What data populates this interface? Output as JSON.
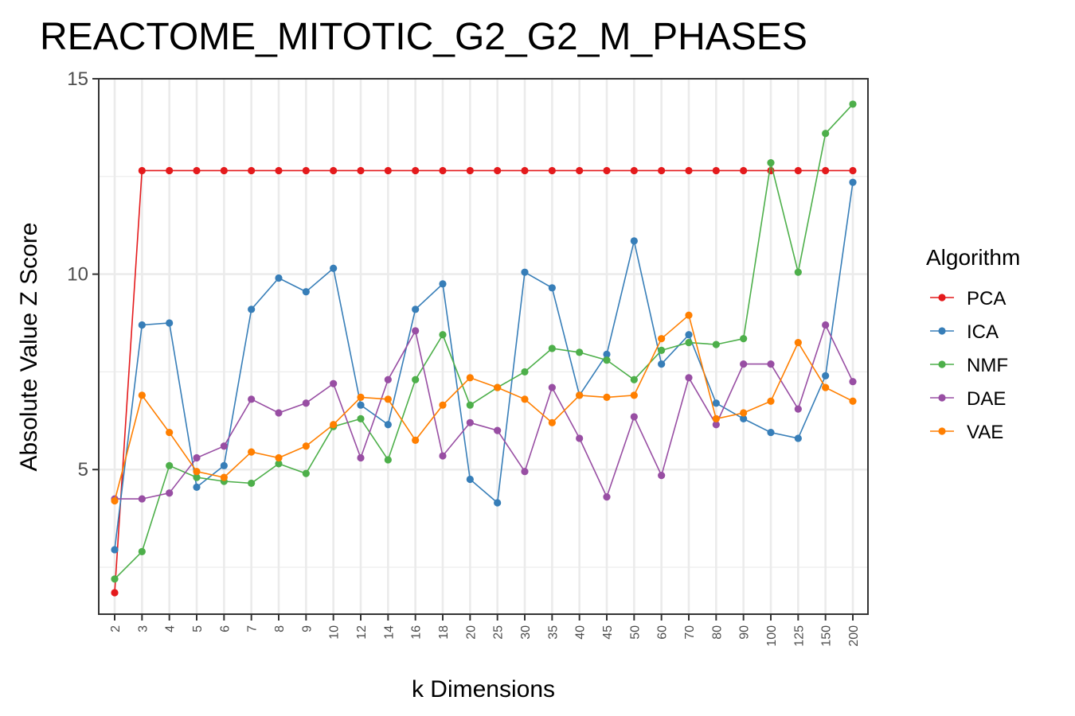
{
  "chart_data": {
    "type": "line",
    "title": "REACTOME_MITOTIC_G2_G2_M_PHASES",
    "xlabel": "k Dimensions",
    "ylabel": "Absolute Value Z Score",
    "categories": [
      "2",
      "3",
      "4",
      "5",
      "6",
      "7",
      "8",
      "9",
      "10",
      "12",
      "14",
      "16",
      "18",
      "20",
      "25",
      "30",
      "35",
      "40",
      "45",
      "50",
      "60",
      "70",
      "80",
      "90",
      "100",
      "125",
      "150",
      "200"
    ],
    "ylim": [
      1.3,
      15
    ],
    "yticks": [
      5,
      10,
      15
    ],
    "ytick_labels": [
      "5",
      "10",
      "15"
    ],
    "grid": true,
    "legend_title": "Algorithm",
    "legend_position": "right",
    "series": [
      {
        "name": "PCA",
        "color": "#e41a1c",
        "values": [
          1.85,
          12.65,
          12.65,
          12.65,
          12.65,
          12.65,
          12.65,
          12.65,
          12.65,
          12.65,
          12.65,
          12.65,
          12.65,
          12.65,
          12.65,
          12.65,
          12.65,
          12.65,
          12.65,
          12.65,
          12.65,
          12.65,
          12.65,
          12.65,
          12.65,
          12.65,
          12.65,
          12.65
        ]
      },
      {
        "name": "ICA",
        "color": "#377eb8",
        "values": [
          2.95,
          8.7,
          8.75,
          4.55,
          5.1,
          9.1,
          9.9,
          9.55,
          10.15,
          6.65,
          6.15,
          9.1,
          9.75,
          4.75,
          4.15,
          10.05,
          9.65,
          6.9,
          7.95,
          10.85,
          7.7,
          8.45,
          6.7,
          6.3,
          5.95,
          5.8,
          7.4,
          12.35
        ]
      },
      {
        "name": "NMF",
        "color": "#4daf4a",
        "values": [
          2.2,
          2.9,
          5.1,
          4.8,
          4.7,
          4.65,
          5.15,
          4.9,
          6.1,
          6.3,
          5.25,
          7.3,
          8.45,
          6.65,
          7.1,
          7.5,
          8.1,
          8.0,
          7.8,
          7.3,
          8.05,
          8.25,
          8.2,
          8.35,
          12.85,
          10.05,
          13.6,
          14.35
        ]
      },
      {
        "name": "DAE",
        "color": "#984ea3",
        "values": [
          4.25,
          4.25,
          4.4,
          5.3,
          5.6,
          6.8,
          6.45,
          6.7,
          7.2,
          5.3,
          7.3,
          8.55,
          5.35,
          6.2,
          6.0,
          4.95,
          7.1,
          5.8,
          4.3,
          6.35,
          4.85,
          7.35,
          6.15,
          7.7,
          7.7,
          6.55,
          8.7,
          7.25
        ]
      },
      {
        "name": "VAE",
        "color": "#ff7f00",
        "values": [
          4.2,
          6.9,
          5.95,
          4.95,
          4.8,
          5.45,
          5.3,
          5.6,
          6.15,
          6.85,
          6.8,
          5.75,
          6.65,
          7.35,
          7.1,
          6.8,
          6.2,
          6.9,
          6.85,
          6.9,
          8.35,
          8.95,
          6.3,
          6.45,
          6.75,
          8.25,
          7.1,
          6.75
        ]
      }
    ]
  }
}
